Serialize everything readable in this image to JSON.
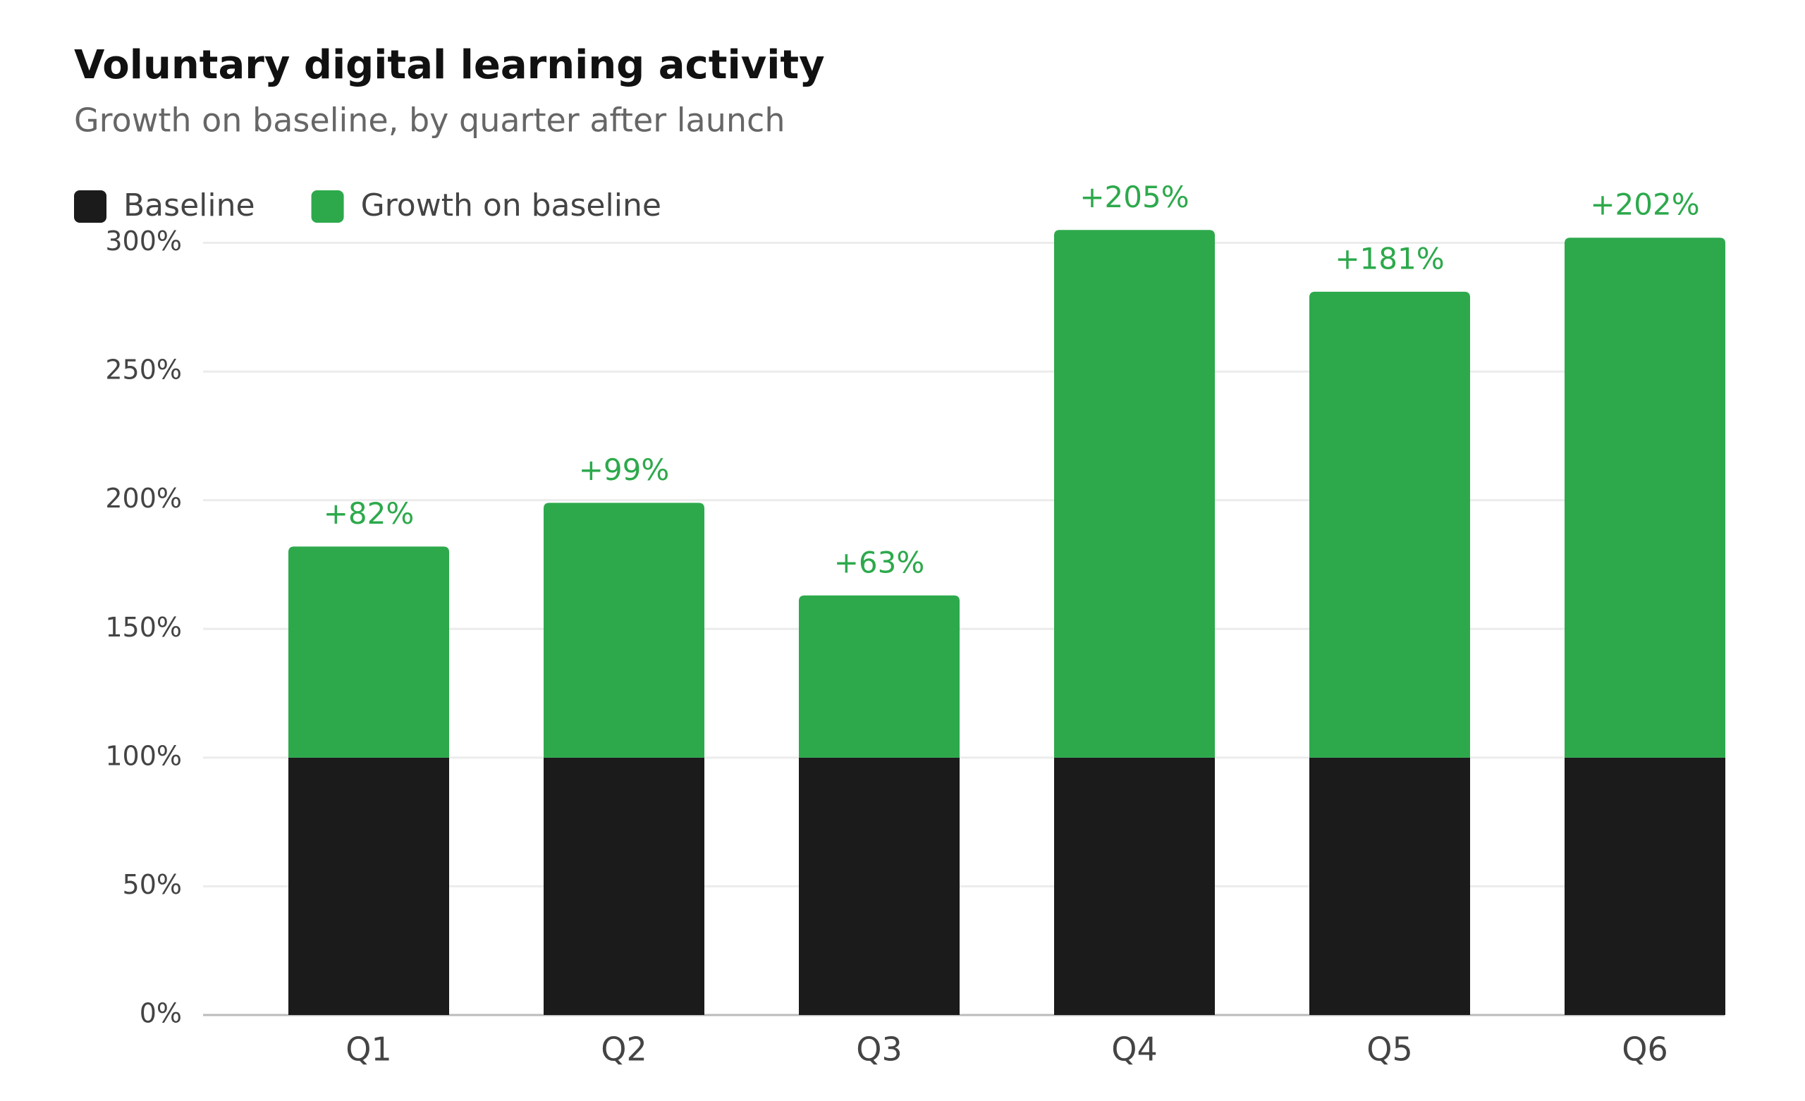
{
  "chart_data": {
    "type": "stacked_bar",
    "title": "Voluntary digital learning activity",
    "subtitle": "Growth on baseline, by quarter after launch",
    "categories": [
      "Q1",
      "Q2",
      "Q3",
      "Q4",
      "Q5",
      "Q6"
    ],
    "series": [
      {
        "name": "Baseline",
        "color": "#1b1b1b",
        "values": [
          100,
          100,
          100,
          100,
          100,
          100
        ]
      },
      {
        "name": "Growth on baseline",
        "color": "#2da94c",
        "values": [
          82,
          99,
          63,
          205,
          181,
          202
        ],
        "value_labels": [
          "+82%",
          "+99%",
          "+63%",
          "+205%",
          "+181%",
          "+202%"
        ]
      }
    ],
    "ylim": [
      0,
      310
    ],
    "yticks": [
      {
        "value": 0,
        "label": "0%"
      },
      {
        "value": 50,
        "label": "50%"
      },
      {
        "value": 100,
        "label": "100%"
      },
      {
        "value": 150,
        "label": "150%"
      },
      {
        "value": 200,
        "label": "200%"
      },
      {
        "value": 250,
        "label": "250%"
      },
      {
        "value": 300,
        "label": "300%"
      }
    ],
    "grid": true
  }
}
